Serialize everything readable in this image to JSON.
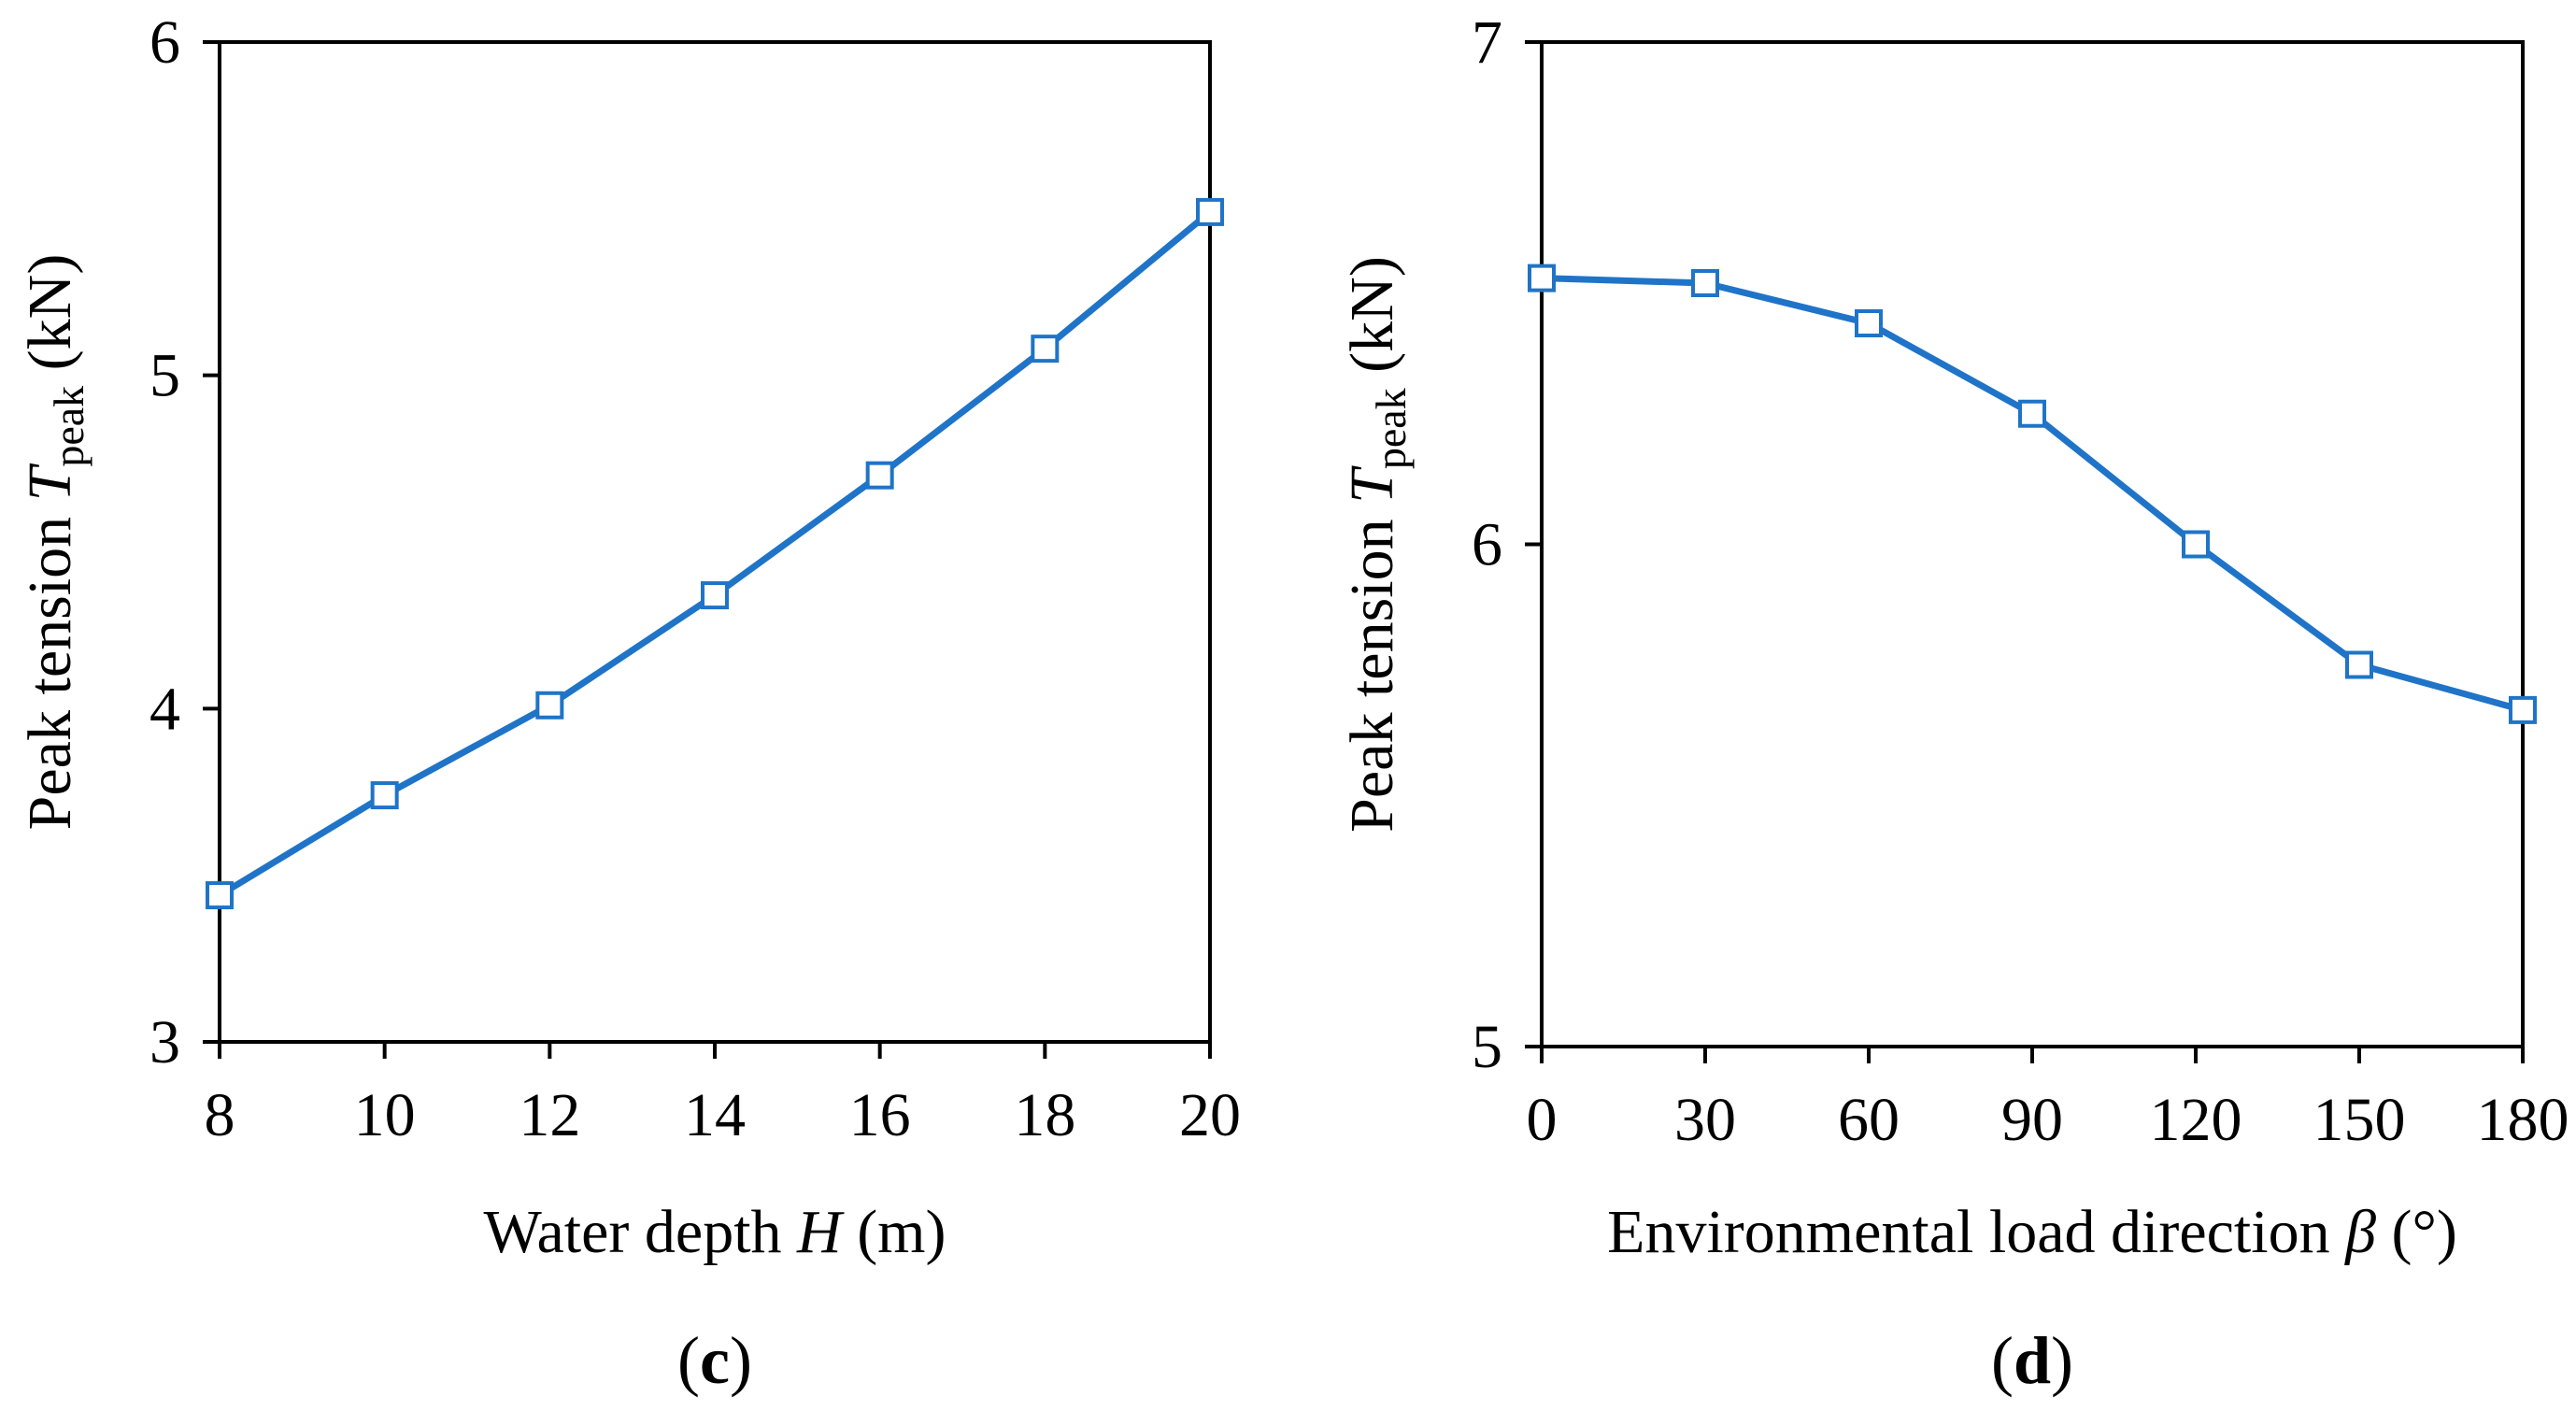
{
  "chart_data": [
    {
      "type": "line",
      "panel": "c",
      "panel_label": "c",
      "xlabel": {
        "pre": "Water depth ",
        "var": "H",
        "post": " (m)"
      },
      "ylabel": {
        "pre": "Peak tension ",
        "var": "T",
        "sub": "peak",
        "post": " (kN)"
      },
      "xlim": [
        8,
        20
      ],
      "ylim": [
        3,
        6
      ],
      "xticks": [
        8,
        10,
        12,
        14,
        16,
        18,
        20
      ],
      "yticks": [
        3,
        4,
        5,
        6
      ],
      "series": [
        {
          "name": "Peak tension",
          "color": "#1f74c8",
          "marker": "square-open",
          "x": [
            8,
            10,
            12,
            14,
            16,
            18,
            20
          ],
          "y": [
            3.44,
            3.74,
            4.01,
            4.34,
            4.7,
            5.08,
            5.49
          ]
        }
      ]
    },
    {
      "type": "line",
      "panel": "d",
      "panel_label": "d",
      "xlabel": {
        "pre": "Environmental load direction ",
        "var": "β",
        "post": " (°)"
      },
      "ylabel": {
        "pre": "Peak tension ",
        "var": "T",
        "sub": "peak",
        "post": " (kN)"
      },
      "xlim": [
        0,
        180
      ],
      "ylim": [
        5,
        7
      ],
      "xticks": [
        0,
        30,
        60,
        90,
        120,
        150,
        180
      ],
      "yticks": [
        5,
        6,
        7
      ],
      "series": [
        {
          "name": "Peak tension",
          "color": "#1f74c8",
          "marker": "square-open",
          "x": [
            0,
            30,
            60,
            90,
            120,
            150,
            180
          ],
          "y": [
            6.53,
            6.52,
            6.44,
            6.26,
            6.0,
            5.76,
            5.67
          ]
        }
      ]
    }
  ]
}
